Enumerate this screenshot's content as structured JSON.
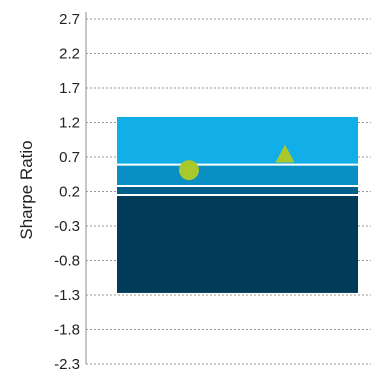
{
  "chart_data": {
    "type": "range_band",
    "title": "",
    "ylabel": "Sharpe Ratio",
    "xlabel": "",
    "ylim": [
      -2.3,
      2.7
    ],
    "yticks": [
      "2.7",
      "2.2",
      "1.7",
      "1.2",
      "0.7",
      "0.2",
      "-0.3",
      "-0.8",
      "-1.3",
      "-1.8",
      "-2.3"
    ],
    "grid": true,
    "bands": [
      {
        "from": -1.27,
        "to": 0.15,
        "color": "#003b57"
      },
      {
        "from": 0.15,
        "to": 0.28,
        "color": "#005f8a"
      },
      {
        "from": 0.28,
        "to": 0.59,
        "color": "#0a8fc4"
      },
      {
        "from": 0.59,
        "to": 1.28,
        "color": "#12aee8"
      }
    ],
    "markers": [
      {
        "shape": "circle",
        "value": 0.51,
        "color": "#a8c92e"
      },
      {
        "shape": "triangle",
        "value": 0.72,
        "color": "#a8c92e"
      }
    ]
  }
}
